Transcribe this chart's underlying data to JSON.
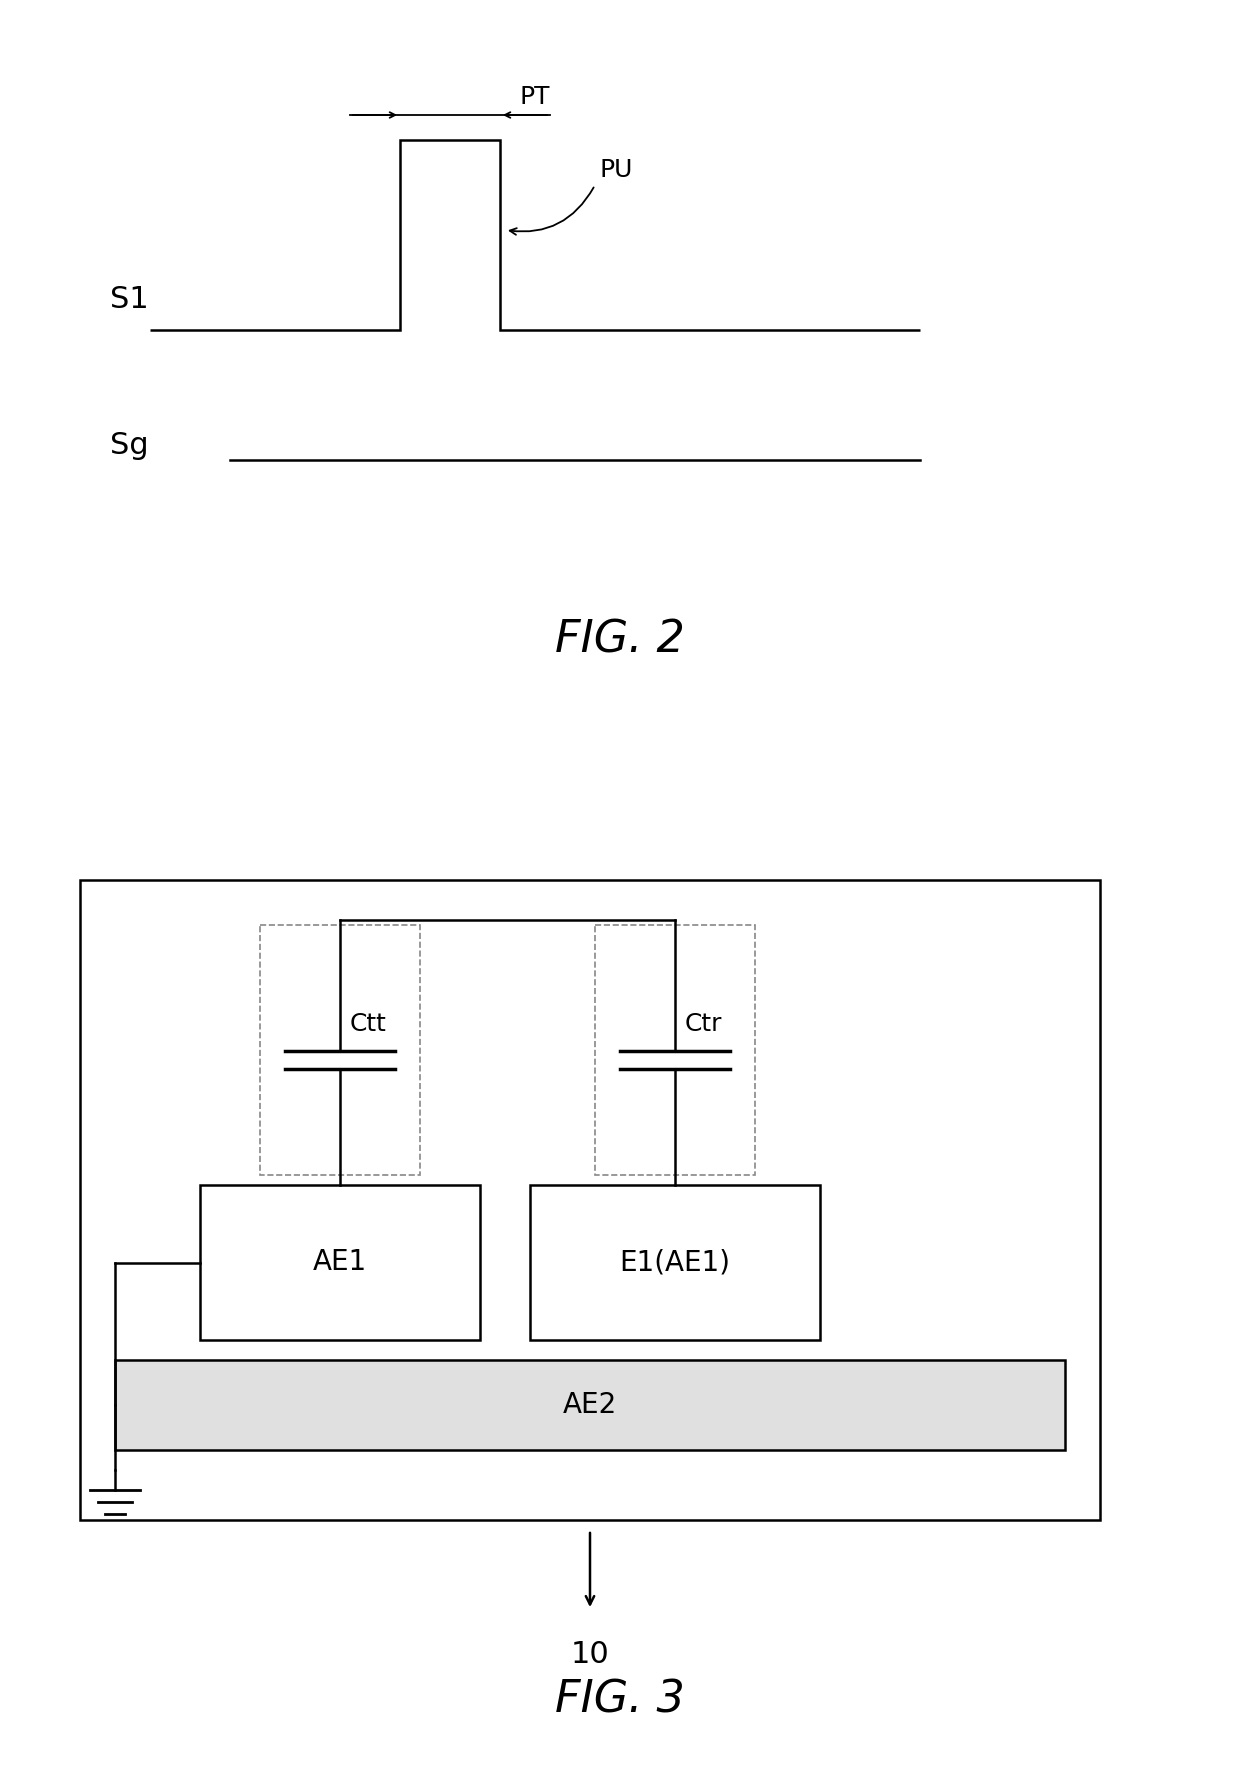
{
  "fig2": {
    "title": "FIG. 2",
    "label_S1": "S1",
    "label_Sg": "Sg",
    "label_PT": "PT",
    "label_PU": "PU"
  },
  "fig3": {
    "title": "FIG. 3",
    "label_10": "10",
    "Ctt_label": "Ctt",
    "Ctr_label": "Ctr",
    "AE1_label": "AE1",
    "E1AE1_label": "E1(AE1)",
    "AE2_label": "AE2"
  },
  "bg_color": "#ffffff",
  "line_color": "#000000"
}
